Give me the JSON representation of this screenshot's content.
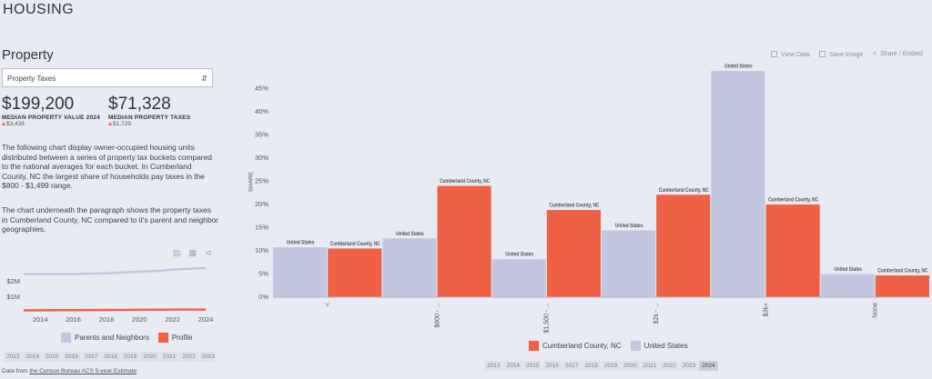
{
  "page": {
    "header": "HOUSING",
    "section": "Property",
    "dropdown": "Property Taxes",
    "stats": [
      {
        "value": "$199,200",
        "label": "MEDIAN PROPERTY VALUE 2024",
        "change": "$3,438"
      },
      {
        "value": "$71,328",
        "label": "MEDIAN PROPERTY TAXES",
        "change": "$1,729"
      }
    ],
    "paragraphs": [
      "The following chart display owner-occupied housing units distributed between a series of property tax buckets compared to the national averages for each bucket. In Cumberland County, NC the largest share of households pay taxes in the $800 - $1,499 range.",
      "The chart underneath the paragraph shows the property taxes in Cumberland County, NC compared to it's parent and neighbor geographies."
    ],
    "toolbar": [
      "View Data",
      "Save Image",
      "Share / Embed"
    ],
    "left_years": [
      "2013",
      "2014",
      "2015",
      "2016",
      "2017",
      "2018",
      "2019",
      "2020",
      "2021",
      "2022",
      "2023"
    ],
    "main_years": [
      "2013",
      "2014",
      "2015",
      "2016",
      "2017",
      "2018",
      "2019",
      "2020",
      "2021",
      "2022",
      "2023",
      "2024"
    ],
    "main_selected_year": 11,
    "source": {
      "prefix": "Data from",
      "link": "the Census Bureau ACS 5-year Estimate"
    }
  },
  "chart_data": [
    {
      "type": "bar",
      "y_label": "SHARE",
      "categories": [
        "<",
        "$800 - ...",
        "$1,500 - ...",
        "$2k - ...",
        "$3k+",
        "None"
      ],
      "series": [
        {
          "name": "United States",
          "color": "#c2c7df",
          "values": [
            10.8,
            12.7,
            8.2,
            14.4,
            48.8,
            5.0
          ]
        },
        {
          "name": "Cumberland County, NC",
          "color": "#ef6145",
          "values": [
            10.5,
            24.0,
            18.8,
            22.1,
            20.0,
            4.7
          ]
        }
      ],
      "ylim": [
        0,
        49
      ],
      "yticks": [
        {
          "value": 0,
          "label": "0%"
        },
        {
          "value": 5,
          "label": "5%"
        },
        {
          "value": 10,
          "label": "10%"
        },
        {
          "value": 15,
          "label": "15%"
        },
        {
          "value": 20,
          "label": "20%"
        },
        {
          "value": 25,
          "label": "25%"
        },
        {
          "value": 30,
          "label": "30%"
        },
        {
          "value": 35,
          "label": "35%"
        },
        {
          "value": 40,
          "label": "40%"
        },
        {
          "value": 45,
          "label": "45%"
        }
      ],
      "grid": false
    },
    {
      "type": "line",
      "x": [
        2013,
        2014,
        2015,
        2016,
        2017,
        2018,
        2019,
        2020,
        2021,
        2022,
        2023,
        2024
      ],
      "series": [
        {
          "name": "Parents and Neighbors",
          "color": "#c2c7df",
          "values": [
            2500000,
            2500000,
            2500000,
            2500000,
            2520000,
            2550000,
            2600000,
            2650000,
            2700000,
            2780000,
            2840000,
            2880000
          ]
        },
        {
          "name": "Profile",
          "color": "#ef6145",
          "values": [
            150000,
            155000,
            160000,
            165000,
            170000,
            175000,
            180000,
            185000,
            190000,
            195000,
            197000,
            199200
          ]
        }
      ],
      "xlim": [
        2013,
        2024
      ],
      "xticks": [
        2014,
        2016,
        2018,
        2020,
        2022,
        2024
      ],
      "ylim": [
        0,
        3000000
      ],
      "yticks": [
        {
          "value": 1000000,
          "label": "$1M"
        },
        {
          "value": 2000000,
          "label": "$2M"
        }
      ],
      "grid": false
    }
  ]
}
